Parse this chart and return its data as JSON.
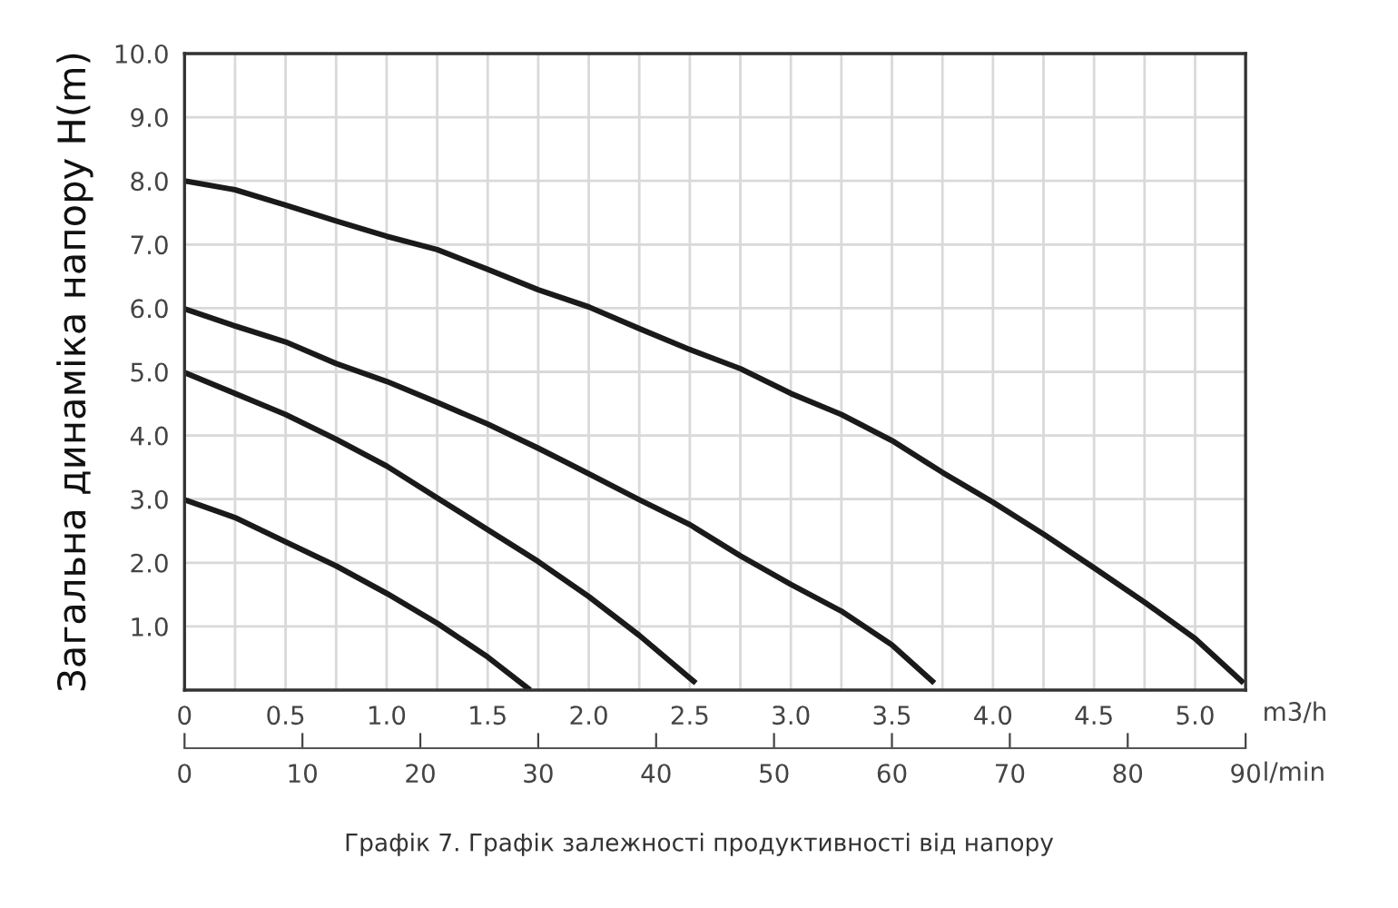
{
  "chart_data": {
    "type": "line",
    "ylabel": "Загальна динаміка напору H(m)",
    "xlabel": "m3/h",
    "x2label": "l/min",
    "annotations": [
      "Графік 7. Графік залежності продуктивності від напору"
    ],
    "series": [
      {
        "color": "#1a1a1a",
        "x": [
          0,
          0.25,
          0.5,
          0.75,
          1.0,
          1.25,
          1.5,
          1.71
        ],
        "values": [
          2.99,
          2.71,
          2.33,
          1.95,
          1.52,
          1.05,
          0.52,
          0.0
        ]
      },
      {
        "color": "#1a1a1a",
        "x": [
          0,
          0.25,
          0.5,
          0.75,
          1.0,
          1.25,
          1.5,
          1.75,
          2.0,
          2.25,
          2.53
        ],
        "values": [
          4.99,
          4.66,
          4.33,
          3.94,
          3.52,
          3.02,
          2.52,
          2.02,
          1.47,
          0.86,
          0.11
        ]
      },
      {
        "color": "#1a1a1a",
        "x": [
          0,
          0.25,
          0.5,
          0.75,
          1.0,
          1.25,
          1.5,
          1.75,
          2.0,
          2.25,
          2.5,
          2.75,
          3.0,
          3.25,
          3.5,
          3.71
        ],
        "values": [
          5.99,
          5.72,
          5.47,
          5.13,
          4.85,
          4.52,
          4.18,
          3.8,
          3.4,
          2.99,
          2.6,
          2.11,
          1.66,
          1.24,
          0.71,
          0.11
        ]
      },
      {
        "color": "#1a1a1a",
        "x": [
          0,
          0.25,
          0.5,
          0.75,
          1.0,
          1.25,
          1.5,
          1.75,
          2.0,
          2.25,
          2.5,
          2.75,
          3.0,
          3.25,
          3.5,
          3.75,
          4.0,
          4.25,
          4.5,
          4.75,
          5.0,
          5.24
        ],
        "values": [
          8.0,
          7.86,
          7.62,
          7.37,
          7.13,
          6.92,
          6.61,
          6.29,
          6.02,
          5.68,
          5.35,
          5.05,
          4.66,
          4.33,
          3.92,
          3.42,
          2.95,
          2.45,
          1.92,
          1.38,
          0.81,
          0.11
        ]
      }
    ],
    "xlim": [
      0,
      5.25
    ],
    "xticks": [
      0,
      {
        "value": 0.25,
        "label": null
      },
      0.5,
      {
        "value": 0.75,
        "label": null
      },
      {
        "value": 1,
        "label": "1.0"
      },
      {
        "value": 1.25,
        "label": null
      },
      1.5,
      {
        "value": 1.75,
        "label": null
      },
      {
        "value": 2,
        "label": "2.0"
      },
      {
        "value": 2.25,
        "label": null
      },
      2.5,
      {
        "value": 2.75,
        "label": null
      },
      {
        "value": 3,
        "label": "3.0"
      },
      {
        "value": 3.25,
        "label": null
      },
      3.5,
      {
        "value": 3.75,
        "label": null
      },
      {
        "value": 4,
        "label": "4.0"
      },
      {
        "value": 4.25,
        "label": null
      },
      4.5,
      {
        "value": 4.75,
        "label": null
      },
      {
        "value": 5,
        "label": "5.0"
      },
      {
        "value": 5.25,
        "label": null
      }
    ],
    "x2lim": [
      0,
      90
    ],
    "x2ticks": [
      0,
      10,
      20,
      30,
      40,
      50,
      60,
      70,
      80,
      90
    ],
    "ylim": [
      0,
      10
    ],
    "yticks": [
      {
        "value": 1,
        "label": "1.0"
      },
      {
        "value": 2,
        "label": "2.0"
      },
      {
        "value": 3,
        "label": "3.0"
      },
      {
        "value": 4,
        "label": "4.0"
      },
      {
        "value": 5,
        "label": "5.0"
      },
      {
        "value": 6,
        "label": "6.0"
      },
      {
        "value": 7,
        "label": "7.0"
      },
      {
        "value": 8,
        "label": "8.0"
      },
      {
        "value": 9,
        "label": "9.0"
      },
      {
        "value": 10,
        "label": "10.0"
      }
    ],
    "grid": true,
    "line_style": "solid"
  }
}
